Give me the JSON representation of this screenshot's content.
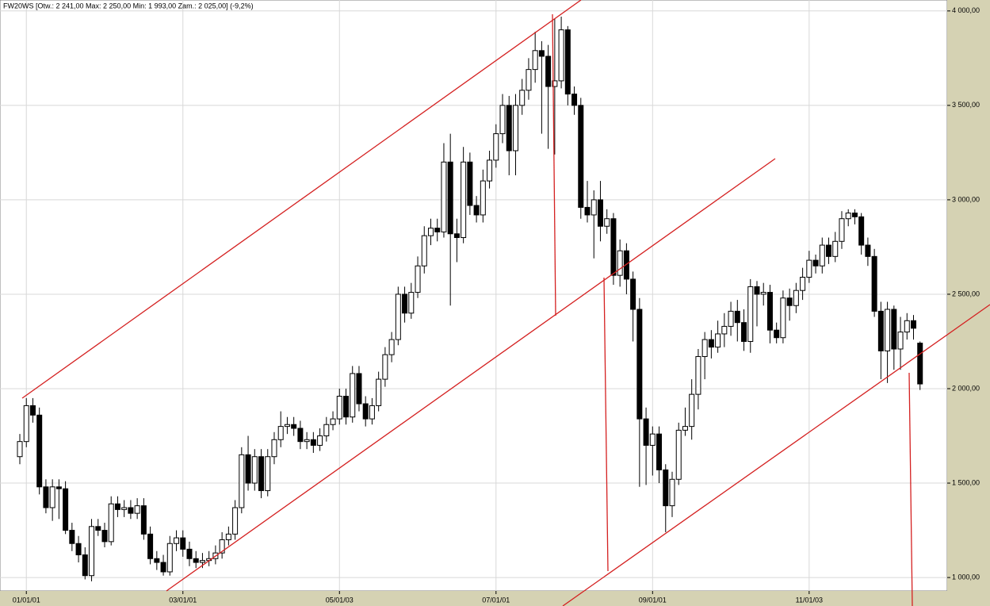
{
  "chart_data": {
    "type": "candlestick",
    "title": "FW20WS [Otw.: 2 241,00  Max: 2 250,00  Min: 1 993,00  Zam.: 2 025,00] (-9,2%)",
    "categories": [
      null,
      "01/01/01",
      null,
      null,
      null,
      null,
      null,
      null,
      null,
      null,
      null,
      null,
      null,
      null,
      null,
      null,
      null,
      null,
      null,
      null,
      null,
      null,
      null,
      null,
      null,
      "03/01/01",
      null,
      null,
      null,
      null,
      null,
      null,
      null,
      null,
      null,
      null,
      null,
      null,
      null,
      null,
      null,
      null,
      null,
      null,
      null,
      null,
      null,
      null,
      null,
      "05/01/03",
      null,
      null,
      null,
      null,
      null,
      null,
      null,
      null,
      null,
      null,
      null,
      null,
      null,
      null,
      null,
      null,
      null,
      null,
      null,
      null,
      null,
      null,
      null,
      "07/01/01",
      null,
      null,
      null,
      null,
      null,
      null,
      null,
      null,
      null,
      null,
      null,
      null,
      null,
      null,
      null,
      null,
      null,
      null,
      null,
      null,
      null,
      null,
      null,
      "09/01/01",
      null,
      null,
      null,
      null,
      null,
      null,
      null,
      null,
      null,
      null,
      null,
      null,
      null,
      null,
      null,
      null,
      null,
      null,
      null,
      null,
      null,
      null,
      null,
      "11/01/03",
      null,
      null,
      null,
      null,
      null,
      null,
      null,
      null,
      null,
      null,
      null,
      null,
      null,
      null,
      null,
      null,
      null
    ],
    "series": {
      "open": [
        1640,
        1720,
        1910,
        1860,
        1480,
        1370,
        1480,
        1470,
        1250,
        1180,
        1120,
        1010,
        1270,
        1250,
        1190,
        1390,
        1360,
        1370,
        1340,
        1380,
        1230,
        1100,
        1080,
        1030,
        1180,
        1210,
        1150,
        1100,
        1080,
        1090,
        1100,
        1130,
        1200,
        1230,
        1370,
        1650,
        1500,
        1640,
        1460,
        1640,
        1730,
        1800,
        1810,
        1790,
        1720,
        1730,
        1700,
        1750,
        1810,
        1840,
        1960,
        1850,
        2080,
        1920,
        1840,
        1910,
        2050,
        2180,
        2260,
        2500,
        2400,
        2510,
        2650,
        2810,
        2850,
        2830,
        3200,
        2820,
        2800,
        3200,
        2970,
        2920,
        3100,
        3210,
        3350,
        3500,
        3260,
        3500,
        3580,
        3690,
        3790,
        3760,
        3600,
        3630,
        3900,
        3560,
        3500,
        2960,
        2920,
        3000,
        2860,
        2900,
        2600,
        2730,
        2580,
        2420,
        1840,
        1700,
        1760,
        1570,
        1380,
        1520,
        1780,
        1800,
        1970,
        2170,
        2260,
        2220,
        2290,
        2330,
        2410,
        2350,
        2250,
        2540,
        2500,
        2510,
        2310,
        2270,
        2480,
        2440,
        2520,
        2590,
        2680,
        2650,
        2760,
        2700,
        2780,
        2900,
        2930,
        2910,
        2760,
        2700,
        2410,
        2200,
        2420,
        2210,
        2300,
        2360,
        2241
      ],
      "high": [
        1760,
        1950,
        1950,
        1900,
        1520,
        1520,
        1520,
        1510,
        1290,
        1220,
        1160,
        1310,
        1310,
        1290,
        1430,
        1430,
        1410,
        1410,
        1420,
        1420,
        1270,
        1140,
        1120,
        1220,
        1250,
        1250,
        1190,
        1140,
        1130,
        1140,
        1170,
        1240,
        1270,
        1410,
        1690,
        1750,
        1680,
        1680,
        1680,
        1770,
        1880,
        1850,
        1850,
        1830,
        1770,
        1770,
        1790,
        1850,
        1880,
        2000,
        2000,
        2120,
        2120,
        1960,
        1950,
        2090,
        2220,
        2300,
        2540,
        2540,
        2560,
        2700,
        2860,
        2900,
        2900,
        3300,
        3350,
        2900,
        3280,
        3250,
        3020,
        3160,
        3260,
        3400,
        3560,
        3550,
        3560,
        3640,
        3750,
        3890,
        3840,
        3820,
        3960,
        3970,
        3920,
        3600,
        3540,
        3100,
        3050,
        3100,
        2950,
        2930,
        2790,
        2770,
        2620,
        2480,
        1900,
        1800,
        1800,
        1600,
        1560,
        1820,
        1900,
        2050,
        2210,
        2300,
        2310,
        2360,
        2400,
        2460,
        2470,
        2420,
        2580,
        2570,
        2560,
        2550,
        2350,
        2520,
        2530,
        2560,
        2640,
        2730,
        2710,
        2800,
        2800,
        2830,
        2940,
        2950,
        2950,
        2930,
        2800,
        2740,
        2460,
        2460,
        2440,
        2380,
        2400,
        2390,
        2250
      ],
      "low": [
        1600,
        1690,
        1820,
        1440,
        1340,
        1300,
        1310,
        1230,
        1140,
        1080,
        990,
        980,
        1220,
        1160,
        1170,
        1320,
        1320,
        1310,
        1310,
        1200,
        1070,
        1040,
        1010,
        1010,
        1140,
        1110,
        1060,
        1050,
        1050,
        1060,
        1070,
        1100,
        1170,
        1200,
        1340,
        1460,
        1460,
        1420,
        1430,
        1600,
        1690,
        1760,
        1750,
        1680,
        1680,
        1660,
        1670,
        1720,
        1780,
        1810,
        1810,
        1820,
        1880,
        1800,
        1810,
        1880,
        2010,
        2140,
        2230,
        2350,
        2370,
        2480,
        2610,
        2760,
        2780,
        2800,
        2440,
        2670,
        2770,
        2920,
        2880,
        2880,
        3060,
        3170,
        3300,
        3130,
        3130,
        3450,
        3530,
        3620,
        3350,
        3270,
        3240,
        3590,
        3500,
        3450,
        2900,
        2880,
        2690,
        2780,
        2820,
        2550,
        2540,
        2500,
        2250,
        1480,
        1490,
        1540,
        1500,
        1240,
        1320,
        1490,
        1750,
        1730,
        1890,
        2050,
        2160,
        2190,
        2220,
        2280,
        2250,
        2200,
        2190,
        2330,
        2440,
        2240,
        2240,
        2240,
        2360,
        2400,
        2470,
        2560,
        2610,
        2610,
        2660,
        2670,
        2740,
        2860,
        2870,
        2710,
        2650,
        2380,
        2050,
        2030,
        2100,
        2100,
        2260,
        2260,
        1993
      ],
      "close": [
        1720,
        1910,
        1860,
        1480,
        1370,
        1480,
        1470,
        1250,
        1180,
        1120,
        1010,
        1270,
        1250,
        1190,
        1390,
        1360,
        1370,
        1340,
        1380,
        1230,
        1100,
        1080,
        1030,
        1180,
        1210,
        1150,
        1100,
        1080,
        1090,
        1100,
        1130,
        1200,
        1230,
        1370,
        1650,
        1500,
        1640,
        1460,
        1640,
        1730,
        1800,
        1810,
        1790,
        1720,
        1730,
        1700,
        1750,
        1810,
        1840,
        1960,
        1850,
        2080,
        1920,
        1840,
        1910,
        2050,
        2180,
        2260,
        2500,
        2400,
        2510,
        2650,
        2810,
        2850,
        2830,
        3200,
        2820,
        2800,
        3200,
        2970,
        2920,
        3100,
        3210,
        3350,
        3500,
        3260,
        3500,
        3580,
        3690,
        3790,
        3760,
        3600,
        3630,
        3900,
        3560,
        3500,
        2960,
        2920,
        3000,
        2860,
        2900,
        2600,
        2730,
        2580,
        2420,
        1840,
        1700,
        1760,
        1570,
        1380,
        1520,
        1780,
        1800,
        1970,
        2170,
        2260,
        2220,
        2290,
        2330,
        2410,
        2350,
        2250,
        2540,
        2500,
        2510,
        2310,
        2270,
        2480,
        2440,
        2520,
        2590,
        2680,
        2650,
        2760,
        2700,
        2780,
        2900,
        2930,
        2910,
        2760,
        2700,
        2410,
        2200,
        2420,
        2210,
        2300,
        2360,
        2320,
        2025
      ]
    },
    "ylim": [
      929,
      4058
    ],
    "yticks": [
      {
        "value": 1000,
        "label": "1 000,00"
      },
      {
        "value": 1500,
        "label": "1 500,00"
      },
      {
        "value": 2000,
        "label": "2 000,00"
      },
      {
        "value": 2500,
        "label": "2 500,00"
      },
      {
        "value": 3000,
        "label": "3 000,00"
      },
      {
        "value": 3500,
        "label": "3 500,00"
      },
      {
        "value": 4000,
        "label": "4 000,00"
      }
    ],
    "grid": true,
    "up_color": "#ffffff",
    "down_color": "#000000"
  }
}
